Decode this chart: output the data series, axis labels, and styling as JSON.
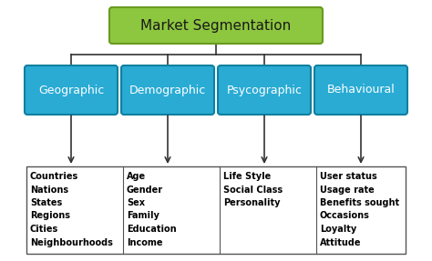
{
  "title": "Market Segmentation",
  "title_box_color": "#8DC63F",
  "title_box_edge": "#6A9A20",
  "title_text_color": "#1a1a1a",
  "sub_boxes": [
    "Geographic",
    "Demographic",
    "Psycographic",
    "Behavioural"
  ],
  "sub_box_color": "#29ABD4",
  "sub_box_edge": "#1080A0",
  "sub_text_color": "#FFFFFF",
  "bottom_boxes": [
    [
      "Countries",
      "Nations",
      "States",
      "Regions",
      "Cities",
      "Neighbourhoods"
    ],
    [
      "Age",
      "Gender",
      "Sex",
      "Family",
      "Education",
      "Income"
    ],
    [
      "Life Style",
      "Social Class",
      "Personality"
    ],
    [
      "User status",
      "Usage rate",
      "Benefits sought",
      "Occasions",
      "Loyalty",
      "Attitude"
    ]
  ],
  "bottom_box_color": "#FFFFFF",
  "bottom_box_edge": "#555555",
  "bottom_text_color": "#000000",
  "background_color": "#FFFFFF",
  "line_color": "#333333",
  "fig_w": 4.74,
  "fig_h": 2.87,
  "dpi": 100
}
